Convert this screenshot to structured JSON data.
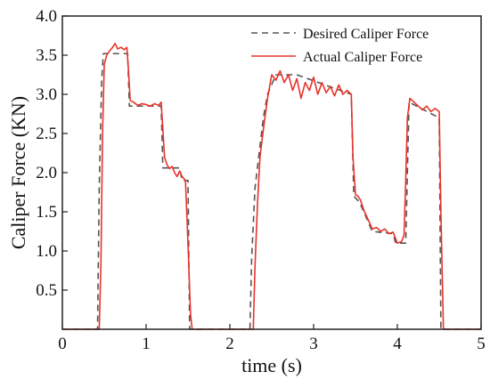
{
  "chart_data": {
    "type": "line",
    "xlabel": "time (s)",
    "ylabel": "Caliper Force (KN)",
    "xlim": [
      0,
      5
    ],
    "ylim": [
      0,
      4.0
    ],
    "x_ticks": [
      0,
      1,
      2,
      3,
      4,
      5
    ],
    "x_tick_labels": [
      "0",
      "1",
      "2",
      "3",
      "4",
      "5"
    ],
    "y_ticks": [
      0.5,
      1.0,
      1.5,
      2.0,
      2.5,
      3.0,
      3.5,
      4.0
    ],
    "y_tick_labels": [
      "0.5",
      "1.0",
      "1.5",
      "2.0",
      "2.5",
      "3.0",
      "3.5",
      "4.0"
    ],
    "grid": false,
    "legend_position": "top-right",
    "series": [
      {
        "name": "Desired Caliper Force",
        "color": "#555555",
        "style": "dashed",
        "x": [
          0,
          0.42,
          0.44,
          0.47,
          0.49,
          0.78,
          0.8,
          1.18,
          1.2,
          1.4,
          1.43,
          1.5,
          1.52,
          2.24,
          2.26,
          2.3,
          2.4,
          2.45,
          2.55,
          2.8,
          3.45,
          3.48,
          3.55,
          3.62,
          3.68,
          3.7,
          3.95,
          3.98,
          4.1,
          4.14,
          4.5,
          4.52,
          5.0
        ],
        "y": [
          0,
          0,
          1.8,
          3.2,
          3.52,
          3.52,
          2.85,
          2.85,
          2.06,
          2.06,
          1.9,
          1.9,
          0,
          0,
          0.9,
          1.8,
          2.7,
          3.0,
          3.25,
          3.25,
          3.0,
          1.7,
          1.62,
          1.45,
          1.3,
          1.25,
          1.22,
          1.1,
          1.1,
          2.9,
          2.7,
          0,
          0
        ]
      },
      {
        "name": "Actual Caliper Force",
        "color": "#e8332a",
        "style": "solid",
        "x": [
          0,
          0.44,
          0.46,
          0.48,
          0.5,
          0.53,
          0.56,
          0.6,
          0.63,
          0.66,
          0.7,
          0.74,
          0.77,
          0.79,
          0.81,
          0.85,
          0.9,
          0.95,
          1.0,
          1.05,
          1.1,
          1.15,
          1.18,
          1.2,
          1.22,
          1.25,
          1.28,
          1.31,
          1.34,
          1.37,
          1.4,
          1.43,
          1.47,
          1.5,
          1.53,
          1.55,
          2.28,
          2.3,
          2.33,
          2.36,
          2.4,
          2.45,
          2.5,
          2.55,
          2.6,
          2.65,
          2.7,
          2.75,
          2.8,
          2.85,
          2.9,
          2.95,
          3.0,
          3.05,
          3.1,
          3.15,
          3.2,
          3.25,
          3.3,
          3.35,
          3.4,
          3.45,
          3.47,
          3.5,
          3.53,
          3.56,
          3.6,
          3.63,
          3.66,
          3.7,
          3.75,
          3.8,
          3.85,
          3.9,
          3.95,
          4.0,
          4.05,
          4.08,
          4.1,
          4.12,
          4.15,
          4.2,
          4.25,
          4.3,
          4.35,
          4.4,
          4.45,
          4.5,
          4.52,
          4.55,
          5.0
        ],
        "y": [
          0,
          0,
          0.8,
          2.5,
          3.38,
          3.5,
          3.55,
          3.6,
          3.65,
          3.58,
          3.6,
          3.57,
          3.6,
          3.3,
          2.92,
          2.9,
          2.86,
          2.88,
          2.87,
          2.85,
          2.88,
          2.86,
          2.9,
          2.55,
          2.2,
          2.1,
          2.05,
          2.08,
          2.0,
          1.95,
          2.02,
          1.95,
          1.9,
          1.1,
          0.2,
          0,
          0,
          0.8,
          1.6,
          2.2,
          2.55,
          2.95,
          3.25,
          3.18,
          3.3,
          3.15,
          3.25,
          3.05,
          3.2,
          2.95,
          3.15,
          3.05,
          3.22,
          3.0,
          3.15,
          3.02,
          3.1,
          2.98,
          3.12,
          3.0,
          3.05,
          3.0,
          2.2,
          1.72,
          1.7,
          1.65,
          1.52,
          1.45,
          1.38,
          1.28,
          1.3,
          1.25,
          1.28,
          1.22,
          1.24,
          1.1,
          1.12,
          1.2,
          1.9,
          2.7,
          2.95,
          2.9,
          2.85,
          2.8,
          2.85,
          2.78,
          2.82,
          2.78,
          1.5,
          0,
          0
        ]
      }
    ]
  }
}
